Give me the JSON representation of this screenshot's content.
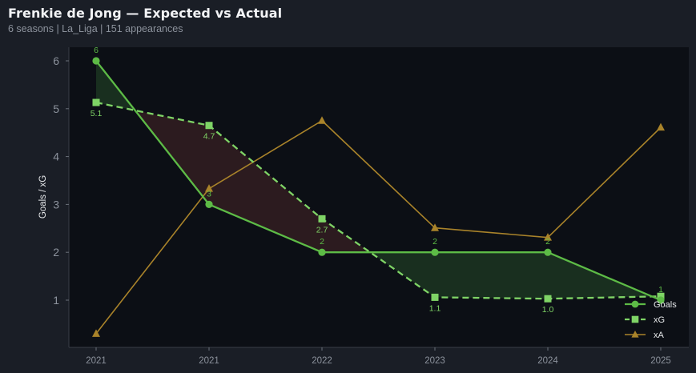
{
  "header": {
    "title": "Frenkie de Jong — Expected vs Actual",
    "subtitle": "6 seasons | La_Liga | 151 appearances"
  },
  "colors": {
    "background": "#1a1e26",
    "plot_background": "#0c0f15",
    "goals": "#5dbb46",
    "xg": "#7fd466",
    "xa": "#a9832a",
    "over_fill": "#1b3320",
    "under_fill": "#301d20",
    "axis_text": "#8c929c",
    "label_text": "#c9ccd1"
  },
  "chart_data": {
    "type": "line",
    "title": "Frenkie de Jong — Expected vs Actual",
    "subtitle": "6 seasons | La_Liga | 151 appearances",
    "xlabel": "",
    "ylabel": "Goals / xG",
    "categories": [
      "2021",
      "2021",
      "2022",
      "2023",
      "2024",
      "2025"
    ],
    "series": [
      {
        "name": "Goals",
        "values": [
          6,
          3,
          2,
          2,
          2,
          1
        ],
        "marker": "circle",
        "style": "solid"
      },
      {
        "name": "xG",
        "values": [
          5.13,
          4.65,
          2.7,
          1.06,
          1.03,
          1.08
        ],
        "marker": "square",
        "style": "dashed"
      },
      {
        "name": "xA",
        "values": [
          0.3,
          3.33,
          4.75,
          2.51,
          2.31,
          4.61
        ],
        "marker": "triangle",
        "style": "solid"
      }
    ],
    "goals_labels": [
      "6",
      "3",
      "2",
      "2",
      "2",
      "1"
    ],
    "xg_labels": [
      "5.1",
      "4.7",
      "2.7",
      "1.1",
      "1.0",
      ""
    ],
    "yticks": [
      1,
      2,
      3,
      4,
      5,
      6
    ],
    "ylim": [
      0,
      6.3
    ],
    "grid": false,
    "legend_position": "lower-right",
    "fill_between_goals_xg": true
  }
}
